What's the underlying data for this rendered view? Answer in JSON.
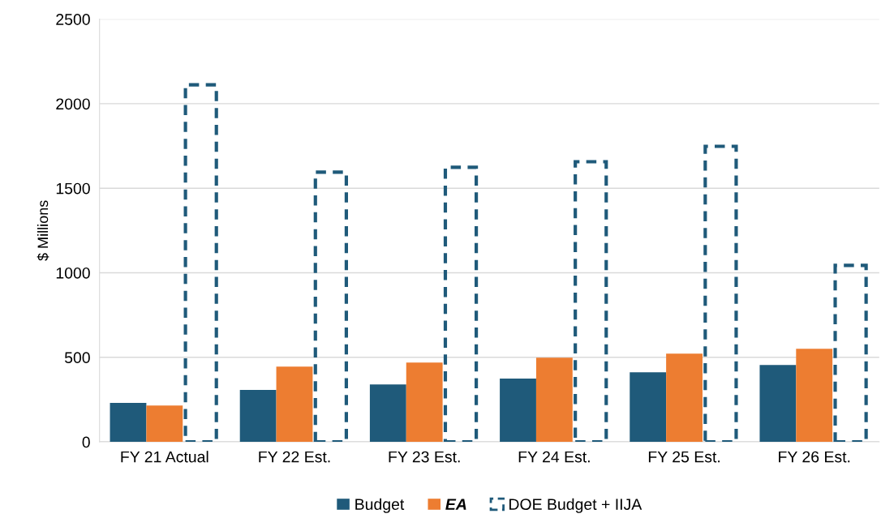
{
  "chart_data": {
    "type": "bar",
    "ylabel": "$ Millions",
    "categories": [
      "FY 21 Actual",
      "FY 22 Est.",
      "FY 23 Est.",
      "FY 24 Est.",
      "FY 25 Est.",
      "FY 26 Est."
    ],
    "series": [
      {
        "name": "Budget",
        "color": "#1f5a7a",
        "values": [
          230,
          307,
          340,
          374,
          412,
          455
        ]
      },
      {
        "name": "EA",
        "color": "#ed7d31",
        "values": [
          215,
          445,
          469,
          498,
          522,
          551
        ]
      },
      {
        "name": "DOE Budget + IIJA",
        "color": "#1f5a7a",
        "line_style": "dashed",
        "values": [
          2112,
          1595,
          1624,
          1657,
          1748,
          1044
        ]
      }
    ],
    "ylim": [
      0,
      2500
    ],
    "yticks": [
      0,
      500,
      1000,
      1500,
      2000,
      2500
    ],
    "grid": "y",
    "legend": "bottom"
  }
}
